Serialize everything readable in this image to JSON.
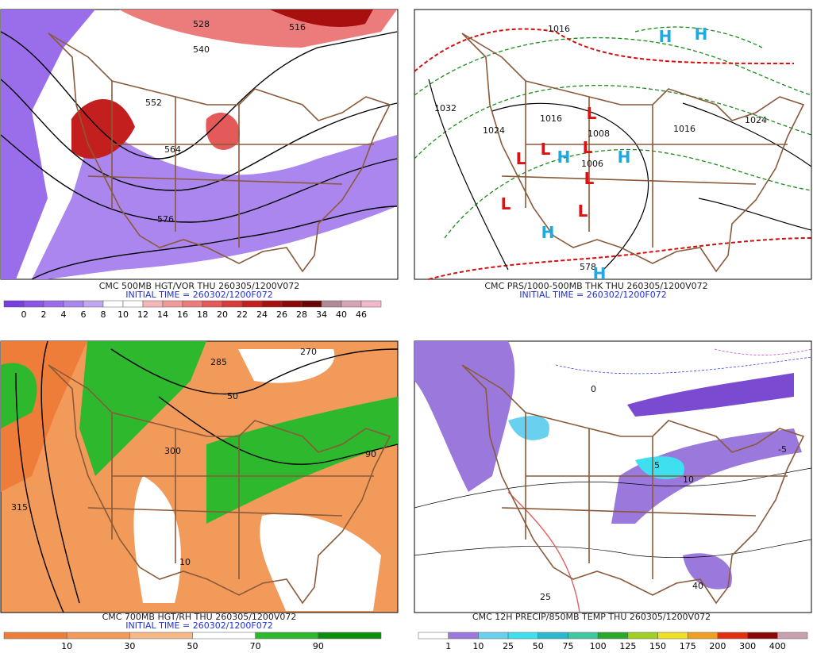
{
  "panels": [
    {
      "caption": "CMC 500MB HGT/VOR THU 260305/1200V072",
      "initial": "INITIAL TIME = 260302/1200F072",
      "colorbar": {
        "labels": [
          0,
          2,
          4,
          6,
          8,
          10,
          12,
          14,
          16,
          18,
          20,
          22,
          24,
          26,
          28,
          34,
          40,
          46
        ],
        "colors": [
          "#7a3de0",
          "#8a55e6",
          "#9a6eea",
          "#ab86ee",
          "#c2a6f2",
          "#ffffff",
          "#ffffff",
          "#f6b7b7",
          "#f19a9a",
          "#ec7b7b",
          "#e45a5a",
          "#d93a3a",
          "#c41f1f",
          "#a81010",
          "#8a0a0a",
          "#6a0606",
          "#b08a94",
          "#d6a4b2",
          "#f0b8c8"
        ]
      },
      "contour_labels": [
        "528",
        "540",
        "552",
        "564",
        "576",
        "516"
      ]
    },
    {
      "caption": "CMC PRS/1000-500MB THK THU 260305/1200V072",
      "initial": "INITIAL TIME = 260302/1200F072",
      "contour_labels": [
        "1032",
        "1024",
        "1016",
        "1008",
        "1006",
        "1016",
        "1024",
        "1016",
        "578"
      ],
      "centers": [
        "L",
        "L",
        "L",
        "L",
        "L",
        "L",
        "L",
        "H",
        "H",
        "H",
        "H",
        "H",
        "H"
      ]
    },
    {
      "caption": "CMC 700MB HGT/RH THU 260305/1200V072",
      "initial": "INITIAL TIME = 260302/1200F072",
      "colorbar": {
        "labels": [
          10,
          30,
          50,
          70,
          90
        ],
        "colors": [
          "#ee7d3a",
          "#f29a5a",
          "#f6b887",
          "#ffffff",
          "#2db82d",
          "#0c8f0c"
        ]
      },
      "contour_labels": [
        "270",
        "285",
        "300",
        "315",
        "50",
        "10",
        "90"
      ]
    },
    {
      "caption": "CMC 12H PRECIP/850MB TEMP THU 260305/1200V072",
      "colorbar": {
        "labels": [
          1,
          10,
          25,
          50,
          75,
          100,
          125,
          150,
          175,
          200,
          300,
          400
        ],
        "colors": [
          "#ffffff",
          "#9a78dc",
          "#6ad0f0",
          "#3ee0f0",
          "#2ab8d0",
          "#40c8a0",
          "#2aa82a",
          "#a0d020",
          "#f0e020",
          "#f0a020",
          "#e03010",
          "#8a0808",
          "#c8a0b0"
        ]
      },
      "contour_labels": [
        "-5",
        "0",
        "5",
        "10",
        "25",
        "40"
      ]
    }
  ]
}
